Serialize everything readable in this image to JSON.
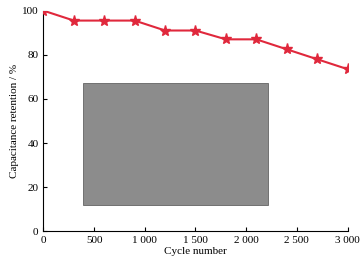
{
  "chart_data": {
    "type": "line",
    "x_label": "Cycle number",
    "y_label": "Capacitance retention / %",
    "x": [
      0,
      300,
      600,
      900,
      1200,
      1500,
      1800,
      2100,
      2400,
      2700,
      3000
    ],
    "values": [
      100,
      95.5,
      95.5,
      95.5,
      91,
      91,
      87,
      87,
      82.5,
      78,
      73.5
    ],
    "color": "#e0283c",
    "marker": "star",
    "line_style": "solid",
    "xlim": [
      0,
      3000
    ],
    "xticks": [
      0,
      500,
      {
        "value": 1000,
        "label": "1 000"
      },
      {
        "value": 1500,
        "label": "1 500"
      },
      {
        "value": 2000,
        "label": "2 000"
      },
      {
        "value": 2500,
        "label": "2 500"
      },
      {
        "value": 3000,
        "label": "3 000"
      }
    ],
    "ylim": [
      0,
      100
    ],
    "yticks": [
      0,
      20,
      40,
      60,
      80,
      100
    ],
    "grid": false
  }
}
